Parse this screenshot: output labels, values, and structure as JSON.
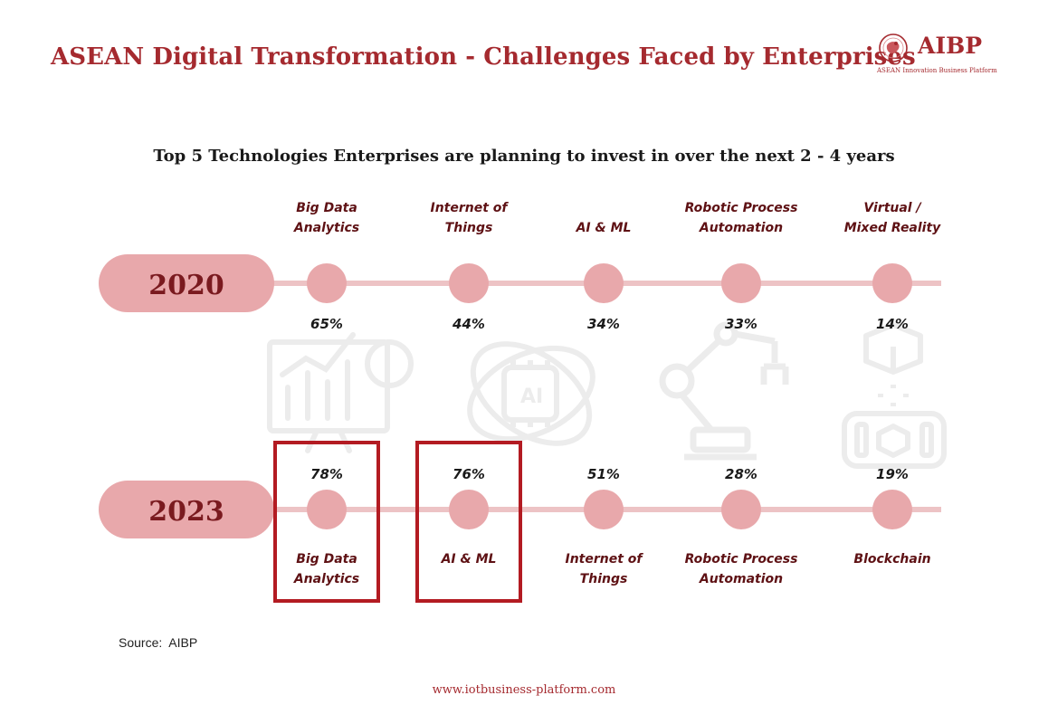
{
  "header": {
    "title": "ASEAN Digital Transformation - Challenges Faced by Enterprises",
    "logo_name": "AIBP",
    "logo_tagline": "ASEAN Innovation Business Platform"
  },
  "colors": {
    "title": "#a52a2f",
    "node": "#e8a8ab",
    "line": "#edc3c5",
    "year_text": "#7a1a1f",
    "label_text": "#5e1114",
    "highlight_box": "#b31b22"
  },
  "footer": {
    "source_label": "Source:",
    "source_value": "AIBP",
    "url": "www.iotbusiness-platform.com"
  },
  "chart_data": {
    "type": "timeline",
    "title": "Top 5 Technologies Enterprises are planning to invest in over the next 2 - 4 years",
    "series": [
      {
        "name": "2020",
        "items": [
          {
            "rank": 1,
            "label": [
              "Big Data",
              "Analytics"
            ],
            "percent": "65%",
            "value": 65
          },
          {
            "rank": 2,
            "label": [
              "Internet of",
              "Things"
            ],
            "percent": "44%",
            "value": 44
          },
          {
            "rank": 3,
            "label": [
              "AI & ML"
            ],
            "percent": "34%",
            "value": 34
          },
          {
            "rank": 4,
            "label": [
              "Robotic Process",
              "Automation"
            ],
            "percent": "33%",
            "value": 33
          },
          {
            "rank": 5,
            "label": [
              "Virtual /",
              "Mixed Reality"
            ],
            "percent": "14%",
            "value": 14
          }
        ]
      },
      {
        "name": "2023",
        "items": [
          {
            "rank": 1,
            "label": [
              "Big Data",
              "Analytics"
            ],
            "percent": "78%",
            "value": 78,
            "highlighted": true
          },
          {
            "rank": 2,
            "label": [
              "AI & ML"
            ],
            "percent": "76%",
            "value": 76,
            "highlighted": true
          },
          {
            "rank": 3,
            "label": [
              "Internet of",
              "Things"
            ],
            "percent": "51%",
            "value": 51
          },
          {
            "rank": 4,
            "label": [
              "Robotic Process",
              "Automation"
            ],
            "percent": "28%",
            "value": 28
          },
          {
            "rank": 5,
            "label": [
              "Blockchain"
            ],
            "percent": "19%",
            "value": 19
          }
        ]
      }
    ]
  },
  "background_icons": [
    "analytics-chart-icon",
    "ai-atom-icon",
    "robotic-arm-icon",
    "vr-headset-icon"
  ]
}
